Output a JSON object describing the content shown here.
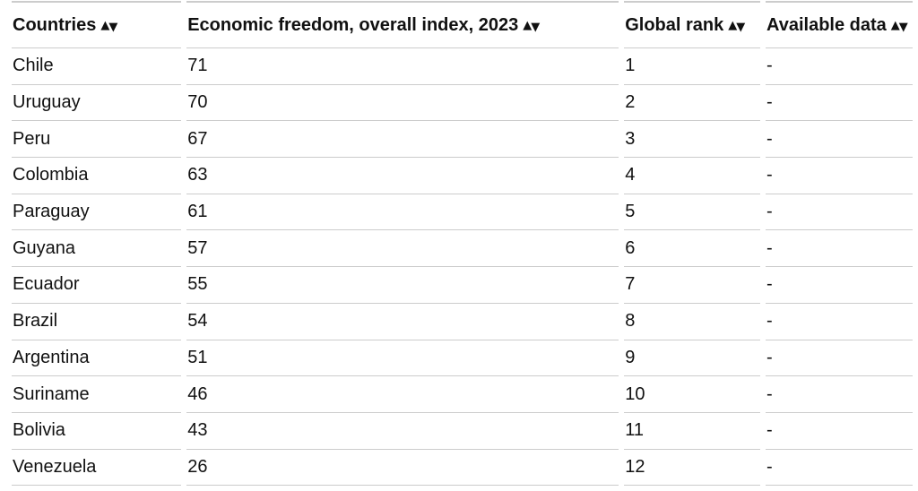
{
  "icons": {
    "sort_ascending": "▲",
    "sort_descending": "▼"
  },
  "colors": {
    "background": "#ffffff",
    "text": "#111111",
    "border": "#cccccc"
  },
  "chart_data": {
    "type": "table",
    "columns": [
      "Countries",
      "Economic freedom, overall index, 2023",
      "Global rank",
      "Available data"
    ],
    "rows": [
      [
        "Chile",
        71,
        1,
        "-"
      ],
      [
        "Uruguay",
        70,
        2,
        "-"
      ],
      [
        "Peru",
        67,
        3,
        "-"
      ],
      [
        "Colombia",
        63,
        4,
        "-"
      ],
      [
        "Paraguay",
        61,
        5,
        "-"
      ],
      [
        "Guyana",
        57,
        6,
        "-"
      ],
      [
        "Ecuador",
        55,
        7,
        "-"
      ],
      [
        "Brazil",
        54,
        8,
        "-"
      ],
      [
        "Argentina",
        51,
        9,
        "-"
      ],
      [
        "Suriname",
        46,
        10,
        "-"
      ],
      [
        "Bolivia",
        43,
        11,
        "-"
      ],
      [
        "Venezuela",
        26,
        12,
        "-"
      ]
    ]
  }
}
